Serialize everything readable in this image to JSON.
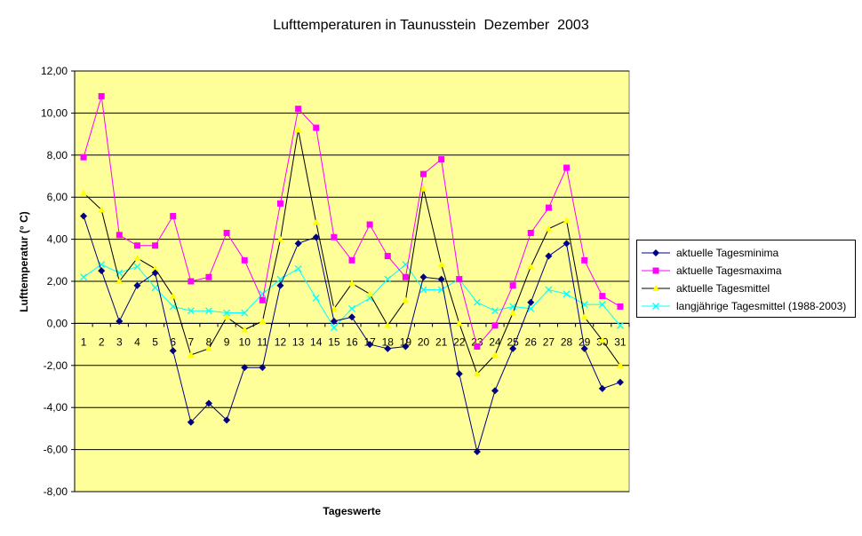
{
  "chart_data": {
    "type": "line",
    "title": "Lufttemperaturen in Taunusstein  Dezember  2003",
    "xlabel": "Tageswerte",
    "ylabel": "Lufttemperatur (° C)",
    "ylim": [
      -8,
      12
    ],
    "ytick_step": 2,
    "ytick_labels": [
      "-8,00",
      "-6,00",
      "-4,00",
      "-2,00",
      "0,00",
      "2,00",
      "4,00",
      "6,00",
      "8,00",
      "10,00",
      "12,00"
    ],
    "grid": "horizontal",
    "plot_background": "#ffff99",
    "legend_position": "right",
    "categories": [
      "1",
      "2",
      "3",
      "4",
      "5",
      "6",
      "7",
      "8",
      "9",
      "10",
      "11",
      "12",
      "13",
      "14",
      "15",
      "16",
      "17",
      "18",
      "19",
      "20",
      "21",
      "22",
      "23",
      "24",
      "25",
      "26",
      "27",
      "28",
      "29",
      "30",
      "31"
    ],
    "series": [
      {
        "name": "aktuelle Tagesminima",
        "color": "#000080",
        "marker": "diamond",
        "values": [
          5.1,
          2.5,
          0.1,
          1.8,
          2.4,
          -1.3,
          -4.7,
          -3.8,
          -4.6,
          -2.1,
          -2.1,
          1.8,
          3.8,
          4.1,
          0.1,
          0.3,
          -1.0,
          -1.2,
          -1.1,
          2.2,
          2.1,
          -2.4,
          -6.1,
          -3.2,
          -1.2,
          1.0,
          3.2,
          3.8,
          -1.2,
          -3.1,
          -2.8
        ]
      },
      {
        "name": "aktuelle Tagesmaxima",
        "color": "#ff00ff",
        "marker": "square",
        "values": [
          7.9,
          10.8,
          4.2,
          3.7,
          3.7,
          5.1,
          2.0,
          2.2,
          4.3,
          3.0,
          1.1,
          5.7,
          10.2,
          9.3,
          4.1,
          3.0,
          4.7,
          3.2,
          2.2,
          7.1,
          7.8,
          2.1,
          -1.1,
          -0.1,
          1.8,
          4.3,
          5.5,
          7.4,
          3.0,
          1.3,
          0.8
        ]
      },
      {
        "name": "aktuelle Tagesmittel",
        "color": "#ffff00",
        "marker": "triangle",
        "values": [
          6.2,
          5.4,
          2.0,
          3.1,
          2.6,
          1.3,
          -1.5,
          -1.2,
          0.3,
          -0.3,
          0.1,
          4.0,
          9.2,
          4.8,
          0.7,
          1.9,
          1.4,
          -0.1,
          1.1,
          6.4,
          2.8,
          0.0,
          -2.4,
          -1.5,
          0.5,
          2.7,
          4.5,
          4.9,
          0.3,
          -0.8,
          -2.0
        ]
      },
      {
        "name": "langjährige Tagesmittel (1988-2003)",
        "color": "#00ffff",
        "marker": "x",
        "values": [
          2.2,
          2.8,
          2.4,
          2.7,
          1.7,
          0.8,
          0.6,
          0.6,
          0.5,
          0.5,
          1.4,
          2.1,
          2.6,
          1.2,
          -0.2,
          0.7,
          1.2,
          2.1,
          2.8,
          1.6,
          1.6,
          2.1,
          1.0,
          0.6,
          0.8,
          0.7,
          1.6,
          1.4,
          0.9,
          0.9,
          -0.1
        ]
      }
    ]
  }
}
